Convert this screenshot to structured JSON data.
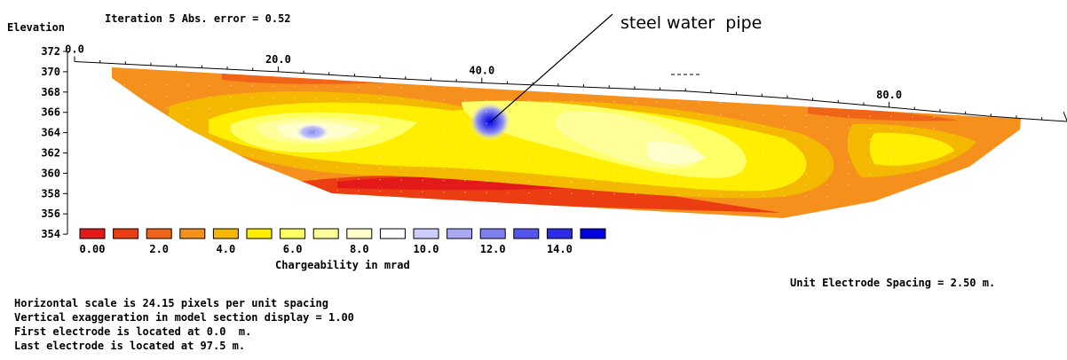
{
  "header": {
    "elevation_label": "Elevation",
    "iteration_text": "Iteration 5 Abs. error = 0.52"
  },
  "annotation": {
    "text": "steel water  pipe"
  },
  "chart_data": {
    "type": "heatmap",
    "title": "Iteration 5 Abs. error = 0.52",
    "xlabel": "",
    "ylabel": "Elevation",
    "colorbar_label": "Chargeability in mrad",
    "xlim": [
      0,
      97.5
    ],
    "ylim": [
      354,
      372
    ],
    "x_ticks": [
      {
        "value": 0,
        "label": "0.0"
      },
      {
        "value": 20,
        "label": "20.0"
      },
      {
        "value": 40,
        "label": "40.0"
      },
      {
        "value": 80,
        "label": "80.0"
      }
    ],
    "y_ticks": [
      372,
      370,
      368,
      366,
      364,
      362,
      360,
      358,
      356,
      354
    ],
    "colorbar": {
      "colors": [
        "#e41a1a",
        "#ec3c12",
        "#f06418",
        "#f5901c",
        "#f5b800",
        "#ffee00",
        "#ffff66",
        "#ffff99",
        "#ffffcc",
        "#ffffff",
        "#ccccff",
        "#aaaaf4",
        "#8080f0",
        "#5555ee",
        "#2b2be8",
        "#0000e0"
      ],
      "labels": [
        {
          "value": 0,
          "label": "0.00"
        },
        {
          "value": 2,
          "label": "2.0"
        },
        {
          "value": 4,
          "label": "4.0"
        },
        {
          "value": 6,
          "label": "6.0"
        },
        {
          "value": 8,
          "label": "8.0"
        },
        {
          "value": 10,
          "label": "10.0"
        },
        {
          "value": 12,
          "label": "12.0"
        },
        {
          "value": 14,
          "label": "14.0"
        }
      ]
    },
    "topography": [
      [
        0,
        371.0
      ],
      [
        10,
        370.5
      ],
      [
        20,
        370.0
      ],
      [
        30,
        369.4
      ],
      [
        40,
        368.9
      ],
      [
        50,
        368.5
      ],
      [
        60,
        368.1
      ],
      [
        70,
        367.4
      ],
      [
        80,
        366.5
      ],
      [
        90,
        365.6
      ],
      [
        97.5,
        365.1
      ]
    ]
  },
  "info": {
    "unit_spacing": "Unit Electrode Spacing = 2.50 m.",
    "lines": [
      "Horizontal scale is 24.15 pixels per unit spacing",
      "Vertical exaggeration in model section display = 1.00",
      "First electrode is located at 0.0  m.",
      "Last electrode is located at 97.5 m."
    ]
  }
}
